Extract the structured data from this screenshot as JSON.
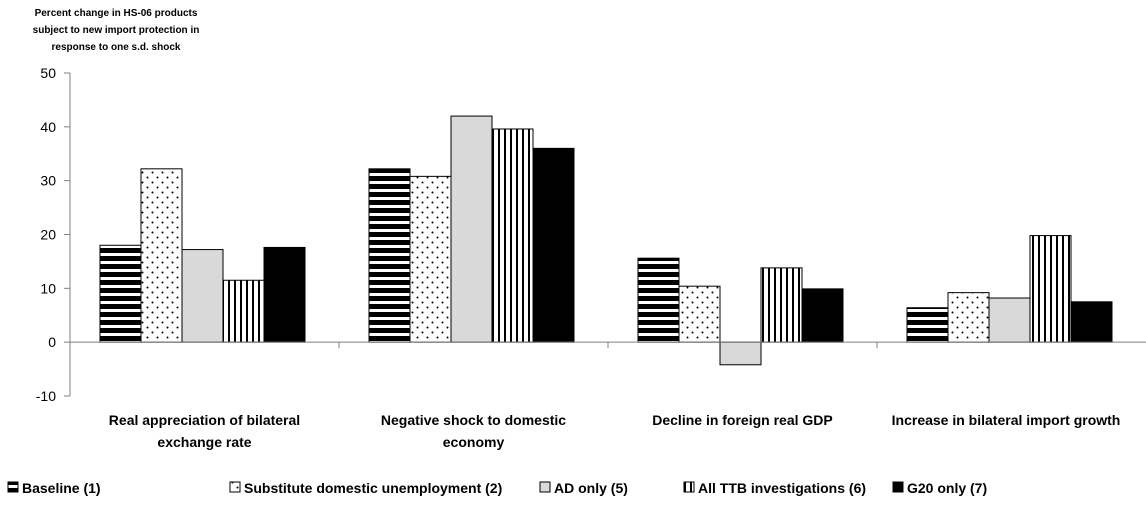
{
  "chart_data": {
    "type": "bar",
    "ylabel_lines": [
      "Percent change in HS-06 products",
      "subject to new import protection in",
      "response to one s.d. shock"
    ],
    "ylim": [
      -10,
      50
    ],
    "yticks": [
      -10,
      0,
      10,
      20,
      30,
      40,
      50
    ],
    "categories": [
      [
        "Real appreciation of bilateral",
        "exchange rate"
      ],
      [
        "Negative shock to domestic",
        "economy"
      ],
      [
        "Decline in foreign real GDP"
      ],
      [
        "Increase in bilateral import growth"
      ]
    ],
    "series": [
      {
        "name": "Baseline (1)",
        "pattern": "horizontal-stripes",
        "values": [
          18.0,
          32.2,
          15.6,
          6.4
        ]
      },
      {
        "name": "Substitute domestic unemployment (2)",
        "pattern": "dots",
        "values": [
          32.2,
          30.8,
          10.4,
          9.2
        ]
      },
      {
        "name": "AD only (5)",
        "pattern": "light-gray",
        "values": [
          17.2,
          42.0,
          -4.2,
          8.2
        ]
      },
      {
        "name": "All TTB investigations (6)",
        "pattern": "vertical-stripes",
        "values": [
          11.5,
          39.6,
          13.8,
          19.8
        ]
      },
      {
        "name": "G20 only (7)",
        "pattern": "black",
        "values": [
          17.6,
          36.0,
          9.9,
          7.5
        ]
      }
    ],
    "grid": false,
    "legend_placement": "bottom"
  }
}
